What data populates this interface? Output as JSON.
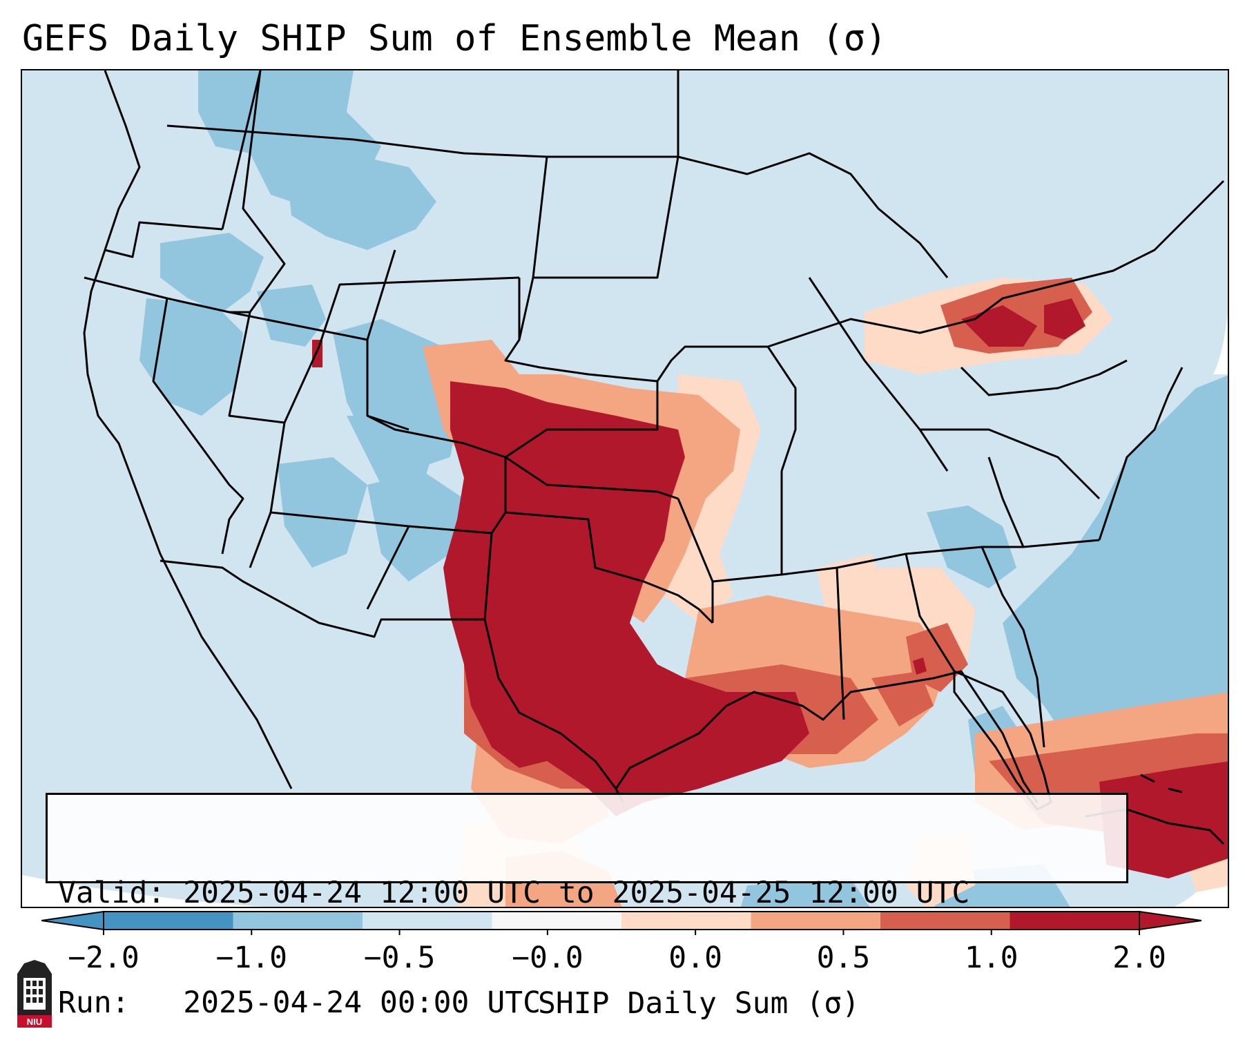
{
  "title": "GEFS Daily SHIP Sum of Ensemble Mean (σ)",
  "info": {
    "valid_label": "Valid:",
    "valid_range": "2025-04-24 12:00 UTC to 2025-04-25 12:00 UTC",
    "run_label": "Run:",
    "run_time": "2025-04-24 00:00 UTC"
  },
  "colorbar": {
    "label": "SHIP Daily Sum (σ)",
    "ticks": [
      "−2.0",
      "−1.0",
      "−0.5",
      "−0.0",
      "0.0",
      "0.5",
      "1.0",
      "2.0"
    ],
    "colors": [
      "#4393c3",
      "#92c5de",
      "#d1e5f0",
      "#f7f7f7",
      "#fddbc7",
      "#f4a582",
      "#d6604d",
      "#b2182b"
    ],
    "extends": "both"
  },
  "logo": {
    "text": "NIU"
  },
  "map": {
    "region": "Contiguous United States",
    "features": [
      "state borders",
      "coastlines",
      "Gulf of Mexico",
      "Great Lakes",
      "Cuba"
    ]
  }
}
